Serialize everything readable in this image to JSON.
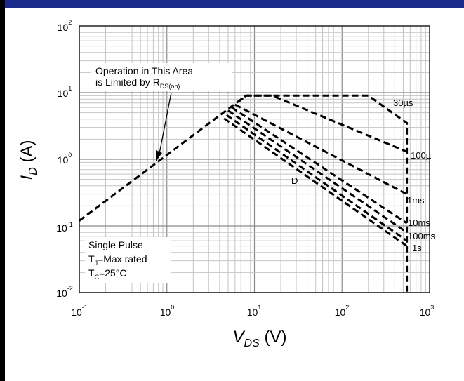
{
  "chart_data": {
    "type": "line",
    "x_scale": "log",
    "y_scale": "log",
    "xlim": [
      0.1,
      1000
    ],
    "ylim": [
      0.01,
      100
    ],
    "grid": true,
    "xlabel": {
      "main": "V",
      "sub": "DS",
      "unit": " (V)"
    },
    "ylabel": {
      "main": "I",
      "sub": "D",
      "unit": " (A)"
    },
    "x_ticks": [
      {
        "base": "10",
        "exp": "-1"
      },
      {
        "base": "10",
        "exp": "0"
      },
      {
        "base": "10",
        "exp": "1"
      },
      {
        "base": "10",
        "exp": "2"
      },
      {
        "base": "10",
        "exp": "3"
      }
    ],
    "y_ticks": [
      {
        "base": "10",
        "exp": "-2"
      },
      {
        "base": "10",
        "exp": "-1"
      },
      {
        "base": "10",
        "exp": "0"
      },
      {
        "base": "10",
        "exp": "1"
      },
      {
        "base": "10",
        "exp": "2"
      }
    ],
    "annotation": {
      "line1": "Operation in This Area",
      "line2": "is Limited by R",
      "line2_sub": "DS(on)"
    },
    "conditions": {
      "line1": "Single Pulse",
      "line2_main": "T",
      "line2_sub": "J",
      "line2_rest": "=Max rated",
      "line3_main": "T",
      "line3_sub": "C",
      "line3_rest": "=25°C"
    },
    "series": [
      {
        "label": "30µs",
        "points": [
          [
            0.1,
            0.12
          ],
          [
            8,
            9
          ],
          [
            70,
            9
          ],
          [
            200,
            9
          ],
          [
            550,
            3.5
          ],
          [
            550,
            0.01
          ]
        ]
      },
      {
        "label": "100µ",
        "points": [
          [
            6.5,
            7.2
          ],
          [
            8,
            9
          ],
          [
            16,
            9
          ],
          [
            550,
            1.3
          ]
        ]
      },
      {
        "label": "1ms",
        "points": [
          [
            6,
            6.6
          ],
          [
            550,
            0.3
          ]
        ]
      },
      {
        "label": "10ms",
        "points": [
          [
            5.5,
            6
          ],
          [
            550,
            0.11
          ]
        ]
      },
      {
        "label": "100ms",
        "points": [
          [
            5,
            5.4
          ],
          [
            550,
            0.08
          ]
        ]
      },
      {
        "label": "1s",
        "points": [
          [
            4.8,
            4.6
          ],
          [
            550,
            0.06
          ]
        ]
      },
      {
        "label": "D",
        "points": [
          [
            4.5,
            4.1
          ],
          [
            550,
            0.05
          ]
        ]
      }
    ],
    "series_labels": [
      "30µs",
      "100µ",
      "1ms",
      "10ms",
      "100ms",
      "1s",
      "D"
    ]
  }
}
